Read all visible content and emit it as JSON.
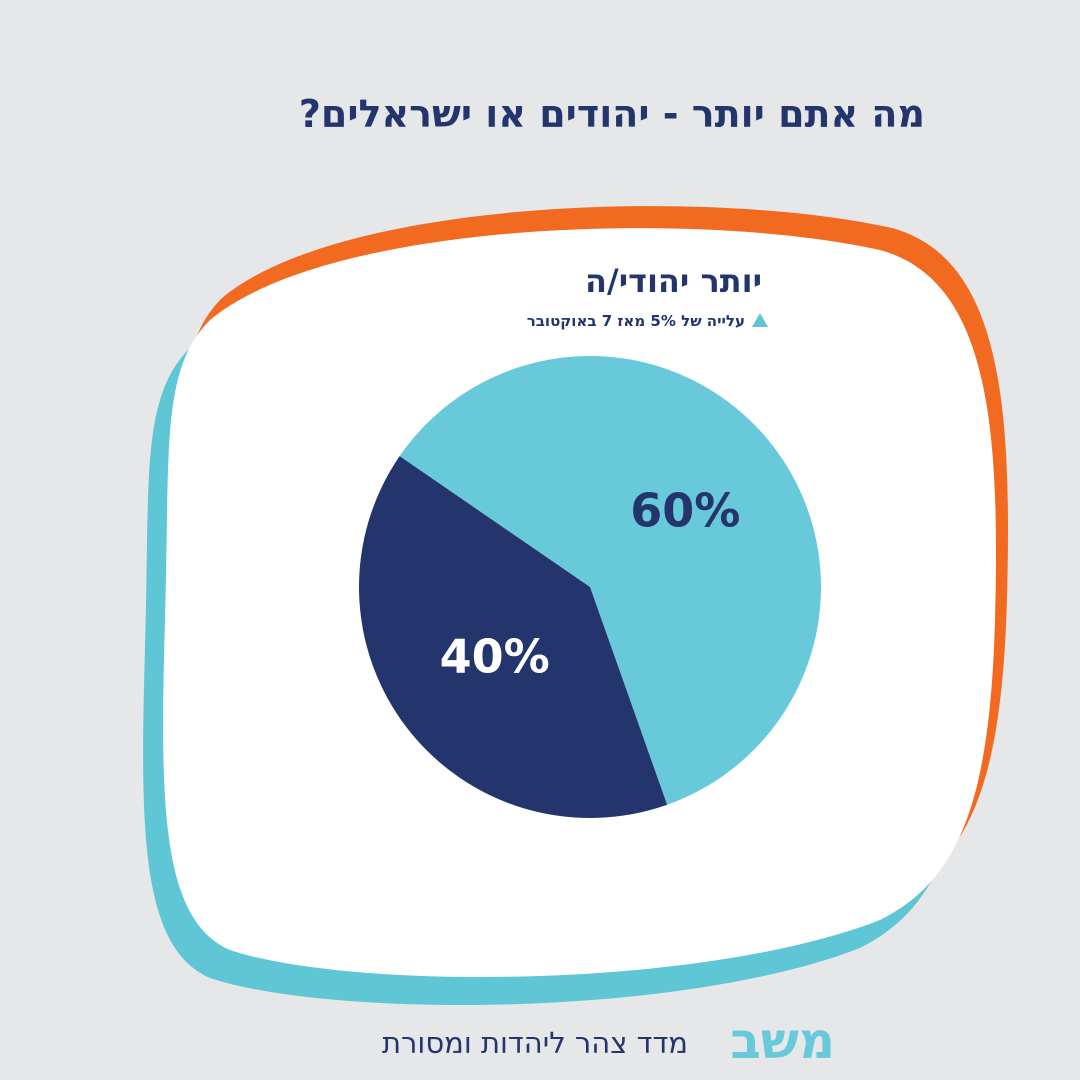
{
  "chart_data": {
    "type": "pie",
    "title": "מה אתם יותר - יהודים או ישראלים?",
    "subtitle": "יותר יהודי/ה",
    "annotation": "עלייה של 5% מאז 7 באוקטובר",
    "values": [
      60,
      40
    ],
    "value_labels": [
      "60%",
      "40%"
    ],
    "colors": [
      "#67c9d9",
      "#24356d"
    ],
    "label_colors": [
      "#24356d",
      "#ffffff"
    ]
  },
  "footer": {
    "logo": "משב",
    "text": "מדד צהר ליהדות ומסורת"
  }
}
